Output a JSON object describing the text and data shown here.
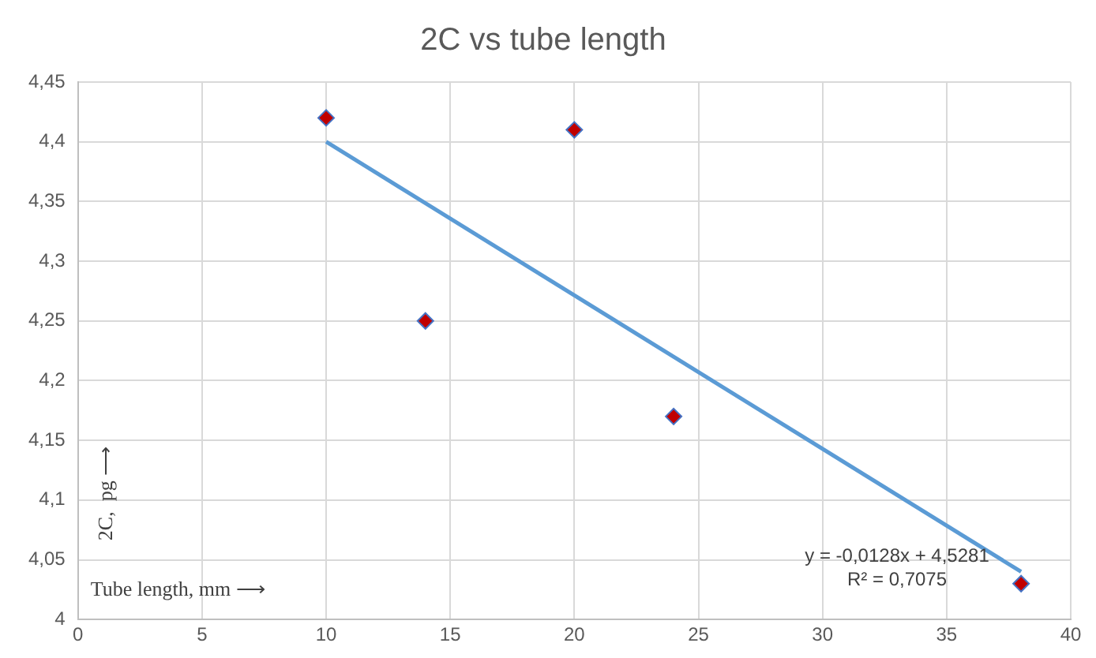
{
  "chart_data": {
    "type": "scatter",
    "title": "2C vs tube length",
    "xlabel": "Tube length, mm ⟶",
    "ylabel": "2C,  pg ⟶",
    "x": [
      10,
      14,
      20,
      24,
      38
    ],
    "series": [
      {
        "color": "#c00000",
        "values": [
          4.42,
          4.25,
          4.41,
          4.17,
          4.03
        ]
      },
      {
        "type": "line",
        "marker": "none",
        "color": "#5b9bd5",
        "x": [
          10,
          38
        ],
        "values": [
          4.4,
          4.04
        ]
      }
    ],
    "xlim": [
      0,
      40
    ],
    "xticks": [
      0,
      5,
      10,
      15,
      20,
      25,
      30,
      35,
      40
    ],
    "ylim": [
      4,
      4.45
    ],
    "yticks": [
      4,
      {
        "value": 4.05,
        "label": "4,05"
      },
      {
        "value": 4.1,
        "label": "4,1"
      },
      {
        "value": 4.15,
        "label": "4,15"
      },
      {
        "value": 4.2,
        "label": "4,2"
      },
      {
        "value": 4.25,
        "label": "4,25"
      },
      {
        "value": 4.3,
        "label": "4,3"
      },
      {
        "value": 4.35,
        "label": "4,35"
      },
      {
        "value": 4.4,
        "label": "4,4"
      },
      {
        "value": 4.45,
        "label": "4,45"
      }
    ],
    "grid": true,
    "legend": false,
    "marker": "diamond",
    "line_style": "solid",
    "annotations": [
      "y = -0,0128x + 4,5281",
      "R² = 0,7075"
    ]
  }
}
